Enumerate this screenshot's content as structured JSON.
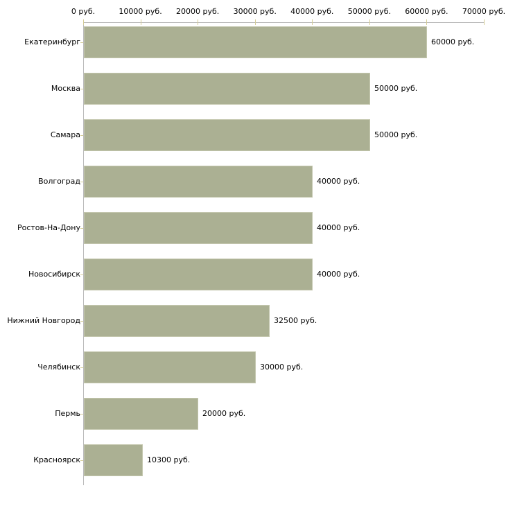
{
  "chart_data": {
    "type": "bar",
    "orientation": "horizontal",
    "title": "",
    "xlabel": "",
    "ylabel": "",
    "unit": "руб.",
    "xlim": [
      0,
      70000
    ],
    "grid": false,
    "legend": "none",
    "categories": [
      "Екатеринбург",
      "Москва",
      "Самара",
      "Волгоград",
      "Ростов-На-Дону",
      "Новосибирск",
      "Нижний Новгород",
      "Челябинск",
      "Пермь",
      "Красноярск"
    ],
    "values": [
      60000,
      50000,
      50000,
      40000,
      40000,
      40000,
      32500,
      30000,
      20000,
      10300
    ],
    "value_labels": [
      "60000 руб.",
      "50000 руб.",
      "50000 руб.",
      "40000 руб.",
      "40000 руб.",
      "40000 руб.",
      "32500 руб.",
      "30000 руб.",
      "20000 руб.",
      "10300 руб."
    ],
    "x_ticks": [
      {
        "value": 0,
        "label": "0 руб."
      },
      {
        "value": 10000,
        "label": "10000 руб."
      },
      {
        "value": 20000,
        "label": "20000 руб."
      },
      {
        "value": 30000,
        "label": "30000 руб."
      },
      {
        "value": 40000,
        "label": "40000 руб."
      },
      {
        "value": 50000,
        "label": "50000 руб."
      },
      {
        "value": 60000,
        "label": "60000 руб."
      },
      {
        "value": 70000,
        "label": "70000 руб."
      }
    ],
    "colors": {
      "background": "#ffffff",
      "bar": "#abb093",
      "bar_border": "#c3c6ad",
      "axis": "#bbbbbb",
      "tick": "#d5cd96",
      "text": "#000000"
    }
  }
}
